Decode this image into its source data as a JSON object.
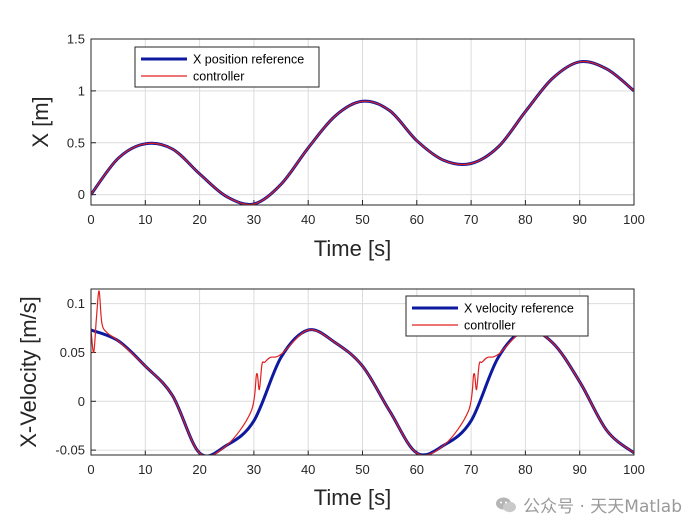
{
  "watermark": {
    "text": "公众号 · 天天Matlab",
    "icon": "wechat-bubble-icon"
  },
  "colors": {
    "reference": "#0d1aa0",
    "controller": "#e02020",
    "grid": "#dcdcdc",
    "axis": "#262626"
  },
  "chart_data": [
    {
      "type": "line",
      "xlabel": "Time [s]",
      "ylabel": "X [m]",
      "xlim": [
        0,
        100
      ],
      "ylim": [
        -0.1,
        1.5
      ],
      "xticks": [
        "0",
        "10",
        "20",
        "30",
        "40",
        "50",
        "60",
        "70",
        "80",
        "90",
        "100"
      ],
      "yticks": [
        "0",
        "0.5",
        "1",
        "1.5"
      ],
      "grid": true,
      "legend_position": "top-left",
      "series": [
        {
          "name": "X position reference",
          "color": "#0d1aa0",
          "role": "reference",
          "x": [
            0,
            5,
            10,
            15,
            20,
            25,
            30,
            35,
            40,
            45,
            50,
            55,
            60,
            65,
            70,
            75,
            80,
            85,
            90,
            95,
            100
          ],
          "y": [
            0,
            0.35,
            0.49,
            0.44,
            0.2,
            -0.02,
            -0.09,
            0.1,
            0.45,
            0.76,
            0.9,
            0.81,
            0.52,
            0.33,
            0.3,
            0.46,
            0.8,
            1.12,
            1.28,
            1.21,
            1.0
          ]
        },
        {
          "name": "controller",
          "color": "#e02020",
          "role": "controller",
          "x": [
            0,
            5,
            10,
            15,
            20,
            25,
            30,
            35,
            40,
            45,
            50,
            55,
            60,
            65,
            70,
            75,
            80,
            85,
            90,
            95,
            100
          ],
          "y": [
            0,
            0.35,
            0.49,
            0.44,
            0.2,
            -0.02,
            -0.09,
            0.1,
            0.45,
            0.76,
            0.9,
            0.81,
            0.52,
            0.33,
            0.3,
            0.46,
            0.8,
            1.12,
            1.28,
            1.21,
            1.0
          ]
        }
      ]
    },
    {
      "type": "line",
      "xlabel": "Time [s]",
      "ylabel": "X-Velocity [m/s]",
      "xlim": [
        0,
        100
      ],
      "ylim": [
        -0.055,
        0.115
      ],
      "xticks": [
        "0",
        "10",
        "20",
        "30",
        "40",
        "50",
        "60",
        "70",
        "80",
        "90",
        "100"
      ],
      "yticks": [
        "-0.05",
        "0",
        "0.05",
        "0.1"
      ],
      "grid": true,
      "legend_position": "top-right",
      "series": [
        {
          "name": "X velocity reference",
          "color": "#0d1aa0",
          "role": "reference",
          "x": [
            0,
            5,
            10,
            15,
            20,
            25,
            30,
            35,
            40,
            45,
            50,
            55,
            60,
            65,
            70,
            75,
            80,
            85,
            90,
            95,
            100
          ],
          "y": [
            0.073,
            0.062,
            0.036,
            0.006,
            -0.053,
            -0.045,
            -0.02,
            0.045,
            0.073,
            0.06,
            0.036,
            -0.01,
            -0.053,
            -0.045,
            -0.02,
            0.045,
            0.073,
            0.06,
            0.02,
            -0.03,
            -0.053
          ]
        },
        {
          "name": "controller",
          "color": "#e02020",
          "role": "controller",
          "x": [
            0,
            0.5,
            1,
            1.5,
            2,
            3,
            5,
            10,
            15,
            20,
            25,
            29.5,
            30.5,
            31,
            31.5,
            32,
            33,
            35,
            40,
            45,
            50,
            55,
            60,
            65,
            69.5,
            70.5,
            71,
            71.5,
            72,
            73,
            75,
            80,
            85,
            90,
            95,
            100
          ],
          "y": [
            0.073,
            0.05,
            0.085,
            0.113,
            0.08,
            0.07,
            0.062,
            0.036,
            0.006,
            -0.053,
            -0.045,
            -0.01,
            0.028,
            0.012,
            0.038,
            0.04,
            0.045,
            0.048,
            0.073,
            0.06,
            0.036,
            -0.01,
            -0.053,
            -0.045,
            -0.01,
            0.028,
            0.012,
            0.038,
            0.04,
            0.045,
            0.048,
            0.073,
            0.06,
            0.02,
            -0.03,
            -0.053
          ]
        }
      ]
    }
  ]
}
